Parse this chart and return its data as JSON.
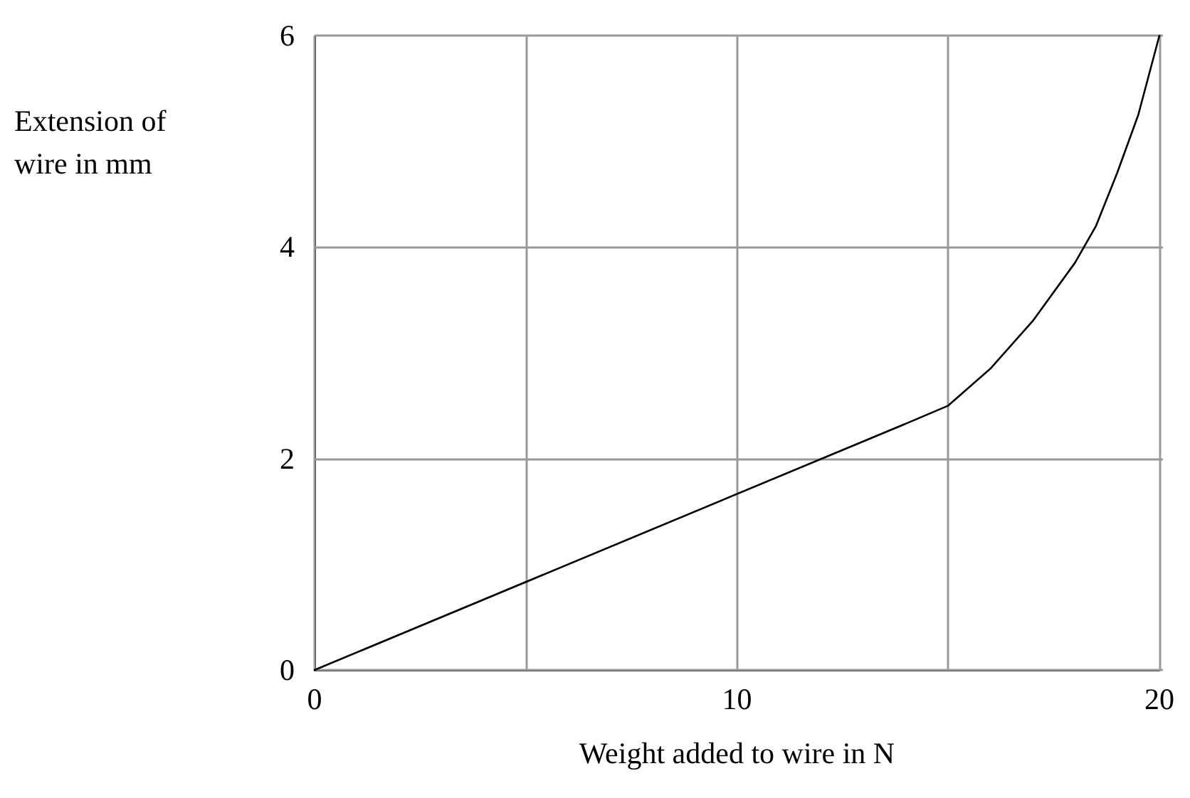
{
  "chart_data": {
    "type": "line",
    "xlabel": "Weight added to wire in N",
    "ylabel": "Extension of\nwire in mm",
    "x": [
      0,
      14,
      15,
      16,
      17,
      18,
      18.5,
      19,
      19.5,
      20
    ],
    "series": [
      {
        "color": "#000000",
        "values": [
          0,
          2.33,
          2.5,
          2.85,
          3.3,
          3.85,
          4.2,
          4.7,
          5.25,
          6
        ]
      }
    ],
    "xlim": [
      0,
      20
    ],
    "xticks": [
      0,
      {
        "value": 5,
        "label": null
      },
      10,
      {
        "value": 15,
        "label": null
      },
      20
    ],
    "ylim": [
      0,
      6
    ],
    "yticks": [
      0,
      2,
      4,
      6
    ],
    "grid": true,
    "marker": "none",
    "line_style": "solid"
  }
}
